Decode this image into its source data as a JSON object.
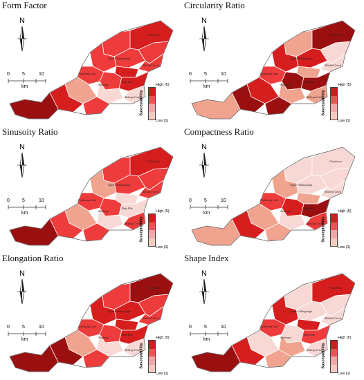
{
  "legend": {
    "axis_label": "Susceptability",
    "high": "High (5)",
    "low": "Low (1)",
    "colors": [
      "#cc1f1f",
      "#e85454",
      "#f0a7a7",
      "#f5c8c0"
    ]
  },
  "scale": {
    "ticks": [
      "0",
      "5",
      "10"
    ],
    "unit": "km"
  },
  "north": "N",
  "classes": {
    "1": "#f8d8d4",
    "2": "#f0a38f",
    "3": "#ee3b3b",
    "4": "#d61e1e",
    "5": "#9a1010"
  },
  "labels": [
    "Charlevoix",
    "Upper Oshkegoniga",
    "Mitchell Creek",
    "Baja Flat",
    "Enkeigi Creek",
    "Kaskaning Lake",
    "Hodenpyl"
  ],
  "panels": [
    {
      "title": "Form Factor",
      "classes": [
        3,
        4,
        3,
        3,
        3,
        3,
        4,
        3,
        4,
        1,
        1,
        3,
        2,
        4,
        5,
        3
      ]
    },
    {
      "title": "Circularity Ratio",
      "classes": [
        2,
        5,
        4,
        1,
        4,
        1,
        2,
        5,
        5,
        2,
        2,
        3,
        4,
        5,
        2,
        5
      ]
    },
    {
      "title": "Sinusoity Ratio",
      "classes": [
        3,
        4,
        3,
        3,
        2,
        3,
        1,
        3,
        1,
        3,
        1,
        3,
        2,
        3,
        5,
        3
      ]
    },
    {
      "title": "Compactness Ratio",
      "classes": [
        1,
        1,
        1,
        1,
        2,
        1,
        2,
        4,
        5,
        3,
        1,
        3,
        2,
        4,
        2,
        2
      ]
    },
    {
      "title": "Elongation Ratio",
      "classes": [
        3,
        5,
        4,
        3,
        4,
        3,
        4,
        3,
        4,
        1,
        1,
        3,
        2,
        5,
        5,
        3
      ]
    },
    {
      "title": "Shape Index",
      "classes": [
        1,
        4,
        1,
        1,
        4,
        1,
        4,
        1,
        3,
        1,
        2,
        3,
        1,
        4,
        5,
        2
      ]
    }
  ]
}
